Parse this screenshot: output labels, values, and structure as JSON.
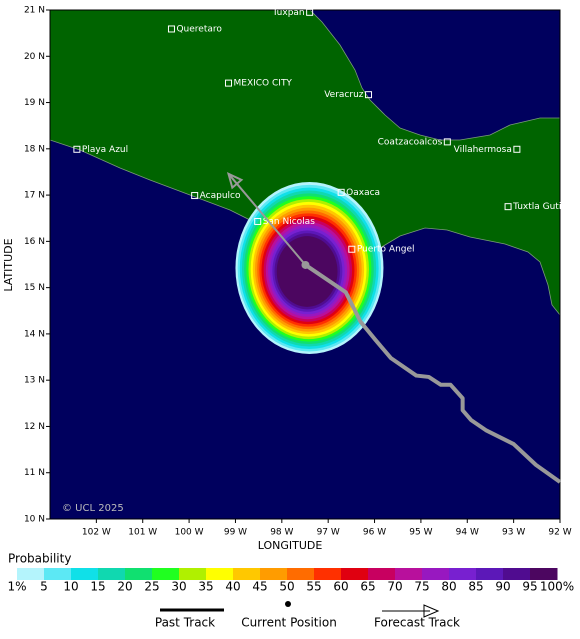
{
  "map": {
    "xlim": [
      -103,
      -92
    ],
    "ylim": [
      10,
      21
    ],
    "xticks": [
      {
        "value": -102,
        "label": "102 W"
      },
      {
        "value": -101,
        "label": "101 W"
      },
      {
        "value": -100,
        "label": "100 W"
      },
      {
        "value": -99,
        "label": "99 W"
      },
      {
        "value": -98,
        "label": "98 W"
      },
      {
        "value": -97,
        "label": "97 W"
      },
      {
        "value": -96,
        "label": "96 W"
      },
      {
        "value": -95,
        "label": "95 W"
      },
      {
        "value": -94,
        "label": "94 W"
      },
      {
        "value": -93,
        "label": "93 W"
      },
      {
        "value": -92,
        "label": "92 W"
      }
    ],
    "yticks": [
      {
        "value": 10,
        "label": "10 N"
      },
      {
        "value": 11,
        "label": "11 N"
      },
      {
        "value": 12,
        "label": "12 N"
      },
      {
        "value": 13,
        "label": "13 N"
      },
      {
        "value": 14,
        "label": "14 N"
      },
      {
        "value": 15,
        "label": "15 N"
      },
      {
        "value": 16,
        "label": "16 N"
      },
      {
        "value": 17,
        "label": "17 N"
      },
      {
        "value": 18,
        "label": "18 N"
      },
      {
        "value": 19,
        "label": "19 N"
      },
      {
        "value": 20,
        "label": "20 N"
      },
      {
        "value": 21,
        "label": "21 N"
      }
    ],
    "xlabel": "LONGITUDE",
    "ylabel": "LATITUDE",
    "credit": "© UCL 2025",
    "cities": [
      {
        "name": "Queretaro",
        "lon": -100.38,
        "lat": 20.59
      },
      {
        "name": "Tuxpan",
        "lon": -97.4,
        "lat": 20.95
      },
      {
        "name": "MEXICO CITY",
        "lon": -99.15,
        "lat": 19.42
      },
      {
        "name": "Veracruz",
        "lon": -96.13,
        "lat": 19.17
      },
      {
        "name": "Coatzacoalcos",
        "lon": -94.43,
        "lat": 18.15
      },
      {
        "name": "Villahermosa",
        "lon": -92.93,
        "lat": 17.99
      },
      {
        "name": "Playa Azul",
        "lon": -102.42,
        "lat": 17.99
      },
      {
        "name": "Acapulco",
        "lon": -99.88,
        "lat": 16.99
      },
      {
        "name": "Oaxaca",
        "lon": -96.72,
        "lat": 17.06
      },
      {
        "name": "Tuxtla Gutierrez",
        "lon": -93.12,
        "lat": 16.75
      },
      {
        "name": "San Nicolas",
        "lon": -98.52,
        "lat": 16.43
      },
      {
        "name": "Puerto Angel",
        "lon": -96.49,
        "lat": 15.83
      }
    ],
    "past_track": {
      "lon": [
        -92.0,
        -92.52,
        -93.0,
        -93.6,
        -93.92,
        -94.1,
        -94.1,
        -94.36,
        -94.57,
        -94.83,
        -95.1,
        -95.65,
        -95.98,
        -96.3,
        -96.62,
        -97.49
      ],
      "lat": [
        10.8,
        11.17,
        11.62,
        11.92,
        12.14,
        12.35,
        12.61,
        12.9,
        12.9,
        13.07,
        13.1,
        13.48,
        13.87,
        14.26,
        14.9,
        15.49
      ]
    },
    "current_position": {
      "lon": -97.49,
      "lat": 15.49
    },
    "forecast_track": {
      "lon": [
        -97.49,
        -99.15
      ],
      "lat": [
        15.49,
        17.46
      ]
    },
    "probability": {
      "title": "Probability",
      "ticks": [
        {
          "value": 1,
          "label": "1%"
        },
        5,
        10,
        15,
        20,
        25,
        30,
        35,
        40,
        45,
        50,
        55,
        60,
        65,
        70,
        75,
        80,
        85,
        90,
        95,
        {
          "value": 100,
          "label": "100%"
        }
      ],
      "colors": [
        "#b4f4fc",
        "#5ce8f4",
        "#10e0e8",
        "#10d8b0",
        "#10e070",
        "#20ff20",
        "#b0f000",
        "#ffff00",
        "#ffc800",
        "#ff9c00",
        "#ff6c00",
        "#ff3000",
        "#e00010",
        "#c80060",
        "#b8109c",
        "#9818c0",
        "#7820d0",
        "#5c18b8",
        "#500c90",
        "#4c0660"
      ]
    },
    "legend": [
      "Past Track",
      "Current Position",
      "Forecast Track"
    ]
  }
}
